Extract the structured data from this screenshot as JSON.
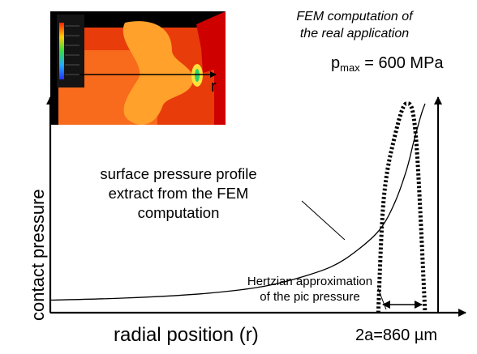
{
  "figure": {
    "fem_caption_line1": "FEM computation of",
    "fem_caption_line2": "the real application",
    "pmax_prefix": "p",
    "pmax_sub": "max",
    "pmax_value": " = 600 MPa",
    "y_axis_label": "contact pressure",
    "x_axis_label": "radial position (r)",
    "width_label": "2a=860 µm",
    "profile_annotation": [
      "surface pressure profile",
      "extract from the FEM",
      "computation"
    ],
    "hertz_annotation": [
      "Hertzian approximation",
      "of the pic pressure"
    ],
    "inset_arrow_label": "r"
  },
  "chart_data": {
    "type": "line",
    "title": "",
    "xlabel": "radial position (r)",
    "ylabel": "contact pressure",
    "units": {
      "pressure": "MPa",
      "width": "µm"
    },
    "series": [
      {
        "kind": "solid",
        "description_text": "surface pressure profile extract from the FEM computation",
        "x": [
          0.0,
          0.2,
          0.4,
          0.55,
          0.65,
          0.75,
          0.82,
          0.88,
          0.92,
          0.95,
          0.97,
          0.99,
          1.0
        ],
        "y": [
          0.06,
          0.07,
          0.09,
          0.12,
          0.16,
          0.22,
          0.3,
          0.4,
          0.53,
          0.68,
          0.82,
          0.95,
          1.0
        ]
      },
      {
        "kind": "dotted",
        "description_text": "Hertzian approximation of the pic pressure",
        "x": [
          0.875,
          0.89,
          0.92,
          0.95,
          0.975,
          1.0
        ],
        "y": [
          0.0,
          0.55,
          0.85,
          1.0,
          0.85,
          0.0
        ]
      }
    ],
    "peak_pressure_MPa": 600,
    "contact_width_um": 860,
    "peak_label": "600 MPa",
    "width_label": "860 µm"
  },
  "colors": {
    "inset_background": "#e93c0b",
    "inset_plateau": "#f86a1c",
    "inset_zone": "#ffa12a",
    "inset_highlight": "#ffe23a",
    "inset_right_block": "#cf0000",
    "inset_black": "#000000",
    "ink": "#000000"
  },
  "icons": [
    "arrow-up-icon",
    "arrow-right-icon",
    "double-arrow-icon",
    "legend-colormap-icon"
  ]
}
